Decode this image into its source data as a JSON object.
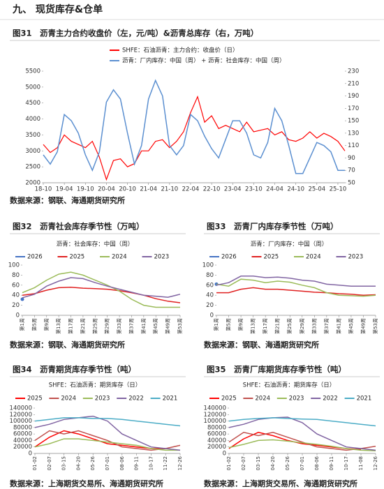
{
  "header": {
    "title": "九、    现货库存&仓单"
  },
  "chart_data": [
    {
      "type": "line",
      "title": "图31　沥青主力合约收盘价（左，元/吨）&沥青总库存（右，万吨）",
      "source": "数据来源：钢联、海通期货研究所",
      "categories": [
        "18-10",
        null,
        null,
        "19-04",
        null,
        null,
        "19-10",
        null,
        null,
        "20-04",
        null,
        null,
        "20-10",
        null,
        null,
        "21-04",
        null,
        null,
        "21-10",
        null,
        null,
        "22-04",
        null,
        null,
        "22-10",
        null,
        null,
        "23-04",
        null,
        null,
        "23-10",
        null,
        null,
        "24-04",
        null,
        null,
        "24-10",
        null,
        null,
        "25-04",
        null,
        null,
        "25-10",
        null
      ],
      "ylim": [
        2000,
        5500
      ],
      "yticks": [
        2000,
        2500,
        3000,
        3500,
        4000,
        4500,
        5000,
        5500
      ],
      "y2lim": [
        50,
        230
      ],
      "y2ticks": [
        50,
        70,
        90,
        110,
        130,
        150,
        170,
        190,
        210,
        230
      ],
      "legend": "top-vertical",
      "series": [
        {
          "name": "SHFE：石油沥青：主力合约：收盘价（日）",
          "color": "#ff0000",
          "values": [
            3200,
            2950,
            3100,
            3500,
            3300,
            3200,
            3100,
            3300,
            2800,
            2100,
            2700,
            2750,
            2500,
            2600,
            3000,
            3000,
            3300,
            3350,
            3100,
            3300,
            3600,
            4200,
            4700,
            3900,
            4100,
            3700,
            3800,
            3700,
            3600,
            3900,
            3600,
            3650,
            3700,
            3500,
            3600,
            3350,
            3300,
            3400,
            3600,
            3400,
            3550,
            3450,
            3300,
            3000
          ]
        },
        {
          "name": "沥青：厂内库存：中国（周） + 沥青：社会库存：中国（周）",
          "color": "#5b8fd0",
          "axis": "y2",
          "values": [
            95,
            80,
            100,
            160,
            150,
            130,
            95,
            70,
            100,
            180,
            200,
            185,
            130,
            80,
            110,
            185,
            215,
            190,
            110,
            95,
            110,
            160,
            150,
            125,
            105,
            90,
            120,
            150,
            150,
            130,
            95,
            90,
            115,
            170,
            150,
            110,
            65,
            65,
            90,
            115,
            110,
            100,
            70,
            70
          ]
        }
      ]
    },
    {
      "type": "line",
      "title": "图32　沥青社会库存季节性（万吨）",
      "subtitle": "沥青：社会库存：中国（周）",
      "source": "数据来源：钢联、海通期货研究所",
      "categories": [
        "第1周",
        "第5周",
        "第9周",
        "第13周",
        "第17周",
        "第21周",
        "第25周",
        "第29周",
        "第33周",
        "第37周",
        "第41周",
        "第45周",
        "第49周",
        "第53周"
      ],
      "ylim": [
        0,
        100
      ],
      "yticks": [
        0,
        20,
        40,
        60,
        80,
        100
      ],
      "legend": "top",
      "series": [
        {
          "name": "2026",
          "color": "#4472c4",
          "values": [
            32,
            null,
            null,
            null,
            null,
            null,
            null,
            null,
            null,
            null,
            null,
            null,
            null,
            null
          ]
        },
        {
          "name": "2025",
          "color": "#e02020",
          "values": [
            40,
            43,
            50,
            55,
            56,
            54,
            53,
            52,
            49,
            45,
            40,
            33,
            28,
            25
          ]
        },
        {
          "name": "2024",
          "color": "#9bbb59",
          "values": [
            45,
            55,
            70,
            82,
            86,
            80,
            70,
            60,
            48,
            32,
            20,
            16,
            16,
            16
          ]
        },
        {
          "name": "2023",
          "color": "#8064a2",
          "values": [
            35,
            42,
            58,
            68,
            75,
            73,
            65,
            58,
            52,
            46,
            40,
            38,
            36,
            42
          ]
        }
      ]
    },
    {
      "type": "line",
      "title": "图33　沥青厂内库存季节性（万吨）",
      "subtitle": "沥青：厂内库存：中国（周）",
      "source": "数据来源：钢联、海通期货研究所",
      "categories": [
        "第1周",
        "第5周",
        "第9周",
        "第13周",
        "第17周",
        "第21周",
        "第25周",
        "第29周",
        "第33周",
        "第37周",
        "第41周",
        "第45周",
        "第49周",
        "第53周"
      ],
      "ylim": [
        0,
        100
      ],
      "yticks": [
        0,
        20,
        40,
        60,
        80,
        100
      ],
      "legend": "top",
      "series": [
        {
          "name": "2026",
          "color": "#4472c4",
          "values": [
            62,
            null,
            null,
            null,
            null,
            null,
            null,
            null,
            null,
            null,
            null,
            null,
            null,
            null
          ]
        },
        {
          "name": "2025",
          "color": "#e02020",
          "values": [
            45,
            45,
            52,
            55,
            52,
            52,
            50,
            48,
            46,
            45,
            43,
            42,
            40,
            41
          ]
        },
        {
          "name": "2024",
          "color": "#9bbb59",
          "values": [
            62,
            58,
            72,
            70,
            65,
            68,
            66,
            60,
            55,
            45,
            40,
            39,
            38,
            40
          ]
        },
        {
          "name": "2023",
          "color": "#8064a2",
          "values": [
            60,
            65,
            78,
            78,
            75,
            76,
            74,
            70,
            68,
            62,
            60,
            58,
            58,
            58
          ]
        }
      ]
    },
    {
      "type": "line",
      "title": "图34　沥青期货库存季节性（吨）",
      "subtitle": "SHFE：石油沥青：期货库存（日）",
      "source": "数据来源：上海期货交易所、海通期货研究所",
      "categories": [
        "01-02",
        "02-07",
        "03-15",
        "04-20",
        "05-26",
        "07-01",
        "08-06",
        "09-11",
        "10-17",
        "11-22",
        "12-26"
      ],
      "ylim": [
        0,
        140000
      ],
      "yticks": [
        0,
        20000,
        40000,
        60000,
        80000,
        100000,
        120000,
        140000
      ],
      "legend": "top",
      "series": [
        {
          "name": "2025",
          "color": "#ff0000",
          "values": [
            20000,
            50000,
            70000,
            60000,
            45000,
            30000,
            25000,
            20000,
            15000,
            15000,
            null
          ]
        },
        {
          "name": "2024",
          "color": "#c0504d",
          "values": [
            40000,
            70000,
            60000,
            70000,
            55000,
            40000,
            20000,
            15000,
            10000,
            15000,
            25000
          ]
        },
        {
          "name": "2023",
          "color": "#9bbb59",
          "values": [
            20000,
            30000,
            45000,
            45000,
            40000,
            35000,
            30000,
            25000,
            15000,
            10000,
            10000
          ]
        },
        {
          "name": "2022",
          "color": "#8064a2",
          "values": [
            80000,
            90000,
            105000,
            110000,
            115000,
            100000,
            60000,
            40000,
            20000,
            15000,
            10000
          ]
        },
        {
          "name": "2021",
          "color": "#4bacc6",
          "values": [
            100000,
            105000,
            110000,
            110000,
            108000,
            108000,
            105000,
            100000,
            95000,
            90000,
            85000
          ]
        }
      ]
    },
    {
      "type": "line",
      "title": "图35　沥青厂库期货库存季节性（吨）",
      "subtitle": "SHFE：石油沥青：期货库存（日）",
      "source": "数据来源：上海期货交易所、海通期货研究所",
      "categories": [
        "01-02",
        "02-07",
        "03-15",
        "04-20",
        "05-26",
        "07-01",
        "08-06",
        "09-11",
        "10-17",
        "11-08",
        "12-26"
      ],
      "ylim": [
        0,
        140000
      ],
      "yticks": [
        0,
        20000,
        40000,
        60000,
        80000,
        100000,
        120000,
        140000
      ],
      "legend": "top",
      "series": [
        {
          "name": "2025",
          "color": "#ff0000",
          "values": [
            15000,
            45000,
            65000,
            55000,
            40000,
            30000,
            25000,
            20000,
            15000,
            12000,
            null
          ]
        },
        {
          "name": "2024",
          "color": "#c0504d",
          "values": [
            35000,
            65000,
            55000,
            65000,
            50000,
            35000,
            20000,
            15000,
            10000,
            15000,
            22000
          ]
        },
        {
          "name": "2023",
          "color": "#9bbb59",
          "values": [
            18000,
            28000,
            40000,
            42000,
            38000,
            33000,
            28000,
            22000,
            15000,
            10000,
            8000
          ]
        },
        {
          "name": "2022",
          "color": "#8064a2",
          "values": [
            80000,
            90000,
            105000,
            110000,
            112000,
            95000,
            60000,
            40000,
            20000,
            15000,
            10000
          ]
        },
        {
          "name": "2021",
          "color": "#4bacc6",
          "values": [
            100000,
            105000,
            108000,
            110000,
            108000,
            106000,
            105000,
            100000,
            95000,
            90000,
            85000
          ]
        }
      ]
    }
  ]
}
